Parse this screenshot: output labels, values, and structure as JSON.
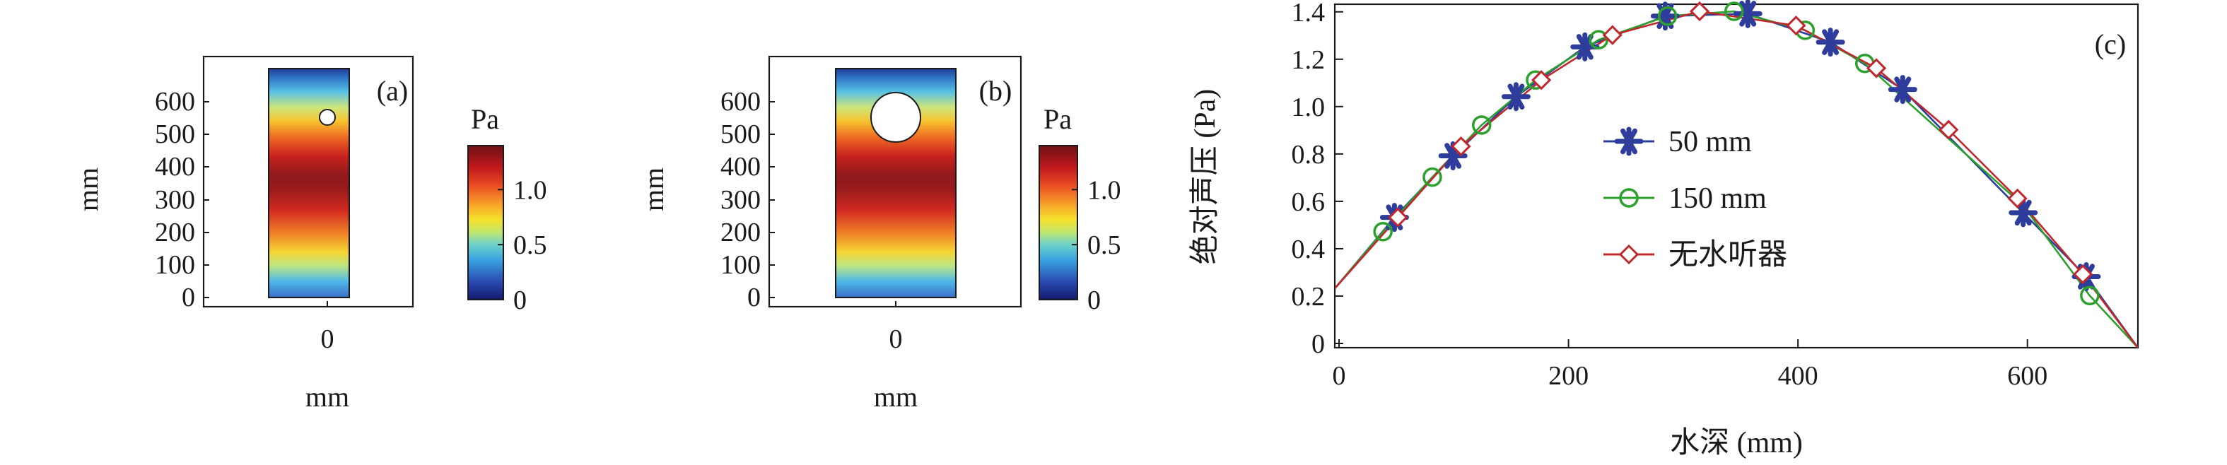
{
  "panels": [
    {
      "label": "(a)",
      "y_ticks": [
        "0",
        "100",
        "200",
        "300",
        "400",
        "500",
        "600"
      ],
      "y_unit": "mm",
      "x_tick": "0",
      "x_unit": "mm",
      "colorbar_unit": "Pa",
      "colorbar_ticks": [
        "0",
        "0.5",
        "1.0"
      ],
      "colorbar_values": [
        0,
        0.5,
        1.0
      ],
      "colorbar_max": 1.4,
      "hydrophone_center_mm": [
        0,
        550
      ],
      "hydrophone_diameter_mm": 50
    },
    {
      "label": "(b)",
      "y_ticks": [
        "0",
        "100",
        "200",
        "300",
        "400",
        "500",
        "600"
      ],
      "y_unit": "mm",
      "x_tick": "0",
      "x_unit": "mm",
      "colorbar_unit": "Pa",
      "colorbar_ticks": [
        "0",
        "0.5",
        "1.0"
      ],
      "colorbar_values": [
        0,
        0.5,
        1.0
      ],
      "colorbar_max": 1.4,
      "hydrophone_center_mm": [
        0,
        550
      ],
      "hydrophone_diameter_mm": 150
    }
  ],
  "chart_data": {
    "type": "line",
    "panel_label": "(c)",
    "xlabel": "水深 (mm)",
    "ylabel": "绝对声压 (Pa)",
    "xlim": [
      0,
      700
    ],
    "ylim": [
      0,
      1.45
    ],
    "xticks": [
      0,
      200,
      400,
      600
    ],
    "xtick_labels": [
      "0",
      "200",
      "400",
      "600"
    ],
    "yticks": [
      0,
      0.2,
      0.4,
      0.6,
      0.8,
      1.0,
      1.2,
      1.4
    ],
    "ytick_labels": [
      "0",
      "0.2",
      "0.4",
      "0.6",
      "0.8",
      "1.0",
      "1.2",
      "1.4"
    ],
    "grid": false,
    "legend_position": "center-left",
    "series": [
      {
        "name": "50 mm",
        "color": "#2e3d9c",
        "marker": "star",
        "x": [
          0,
          52,
          103,
          158,
          218,
          288,
          360,
          432,
          495,
          600,
          655,
          700
        ],
        "y": [
          0.25,
          0.55,
          0.81,
          1.06,
          1.27,
          1.4,
          1.41,
          1.29,
          1.09,
          0.57,
          0.3,
          0.0
        ],
        "marker_x": [
          52,
          103,
          158,
          218,
          288,
          360,
          432,
          495,
          600,
          655
        ],
        "marker_y": [
          0.55,
          0.81,
          1.06,
          1.27,
          1.4,
          1.41,
          1.29,
          1.09,
          0.57,
          0.3
        ]
      },
      {
        "name": "150 mm",
        "color": "#2ca02c",
        "marker": "circle",
        "x": [
          0,
          42,
          85,
          128,
          175,
          230,
          290,
          348,
          410,
          462,
          600,
          658,
          700
        ],
        "y": [
          0.25,
          0.49,
          0.72,
          0.94,
          1.13,
          1.3,
          1.4,
          1.42,
          1.34,
          1.2,
          0.6,
          0.22,
          0.0
        ],
        "marker_x": [
          42,
          85,
          128,
          175,
          230,
          290,
          348,
          410,
          462,
          658
        ],
        "marker_y": [
          0.49,
          0.72,
          0.94,
          1.13,
          1.3,
          1.4,
          1.42,
          1.34,
          1.2,
          0.22
        ]
      },
      {
        "name": "无水听器",
        "color": "#c0282e",
        "marker": "diamond",
        "x": [
          0,
          55,
          110,
          180,
          242,
          318,
          402,
          472,
          535,
          595,
          652,
          700
        ],
        "y": [
          0.25,
          0.55,
          0.85,
          1.13,
          1.32,
          1.42,
          1.36,
          1.18,
          0.92,
          0.63,
          0.31,
          0.0
        ],
        "marker_x": [
          55,
          110,
          180,
          242,
          318,
          402,
          472,
          535,
          595,
          652
        ],
        "marker_y": [
          0.55,
          0.85,
          1.13,
          1.32,
          1.42,
          1.36,
          1.18,
          0.92,
          0.63,
          0.31
        ]
      }
    ]
  }
}
